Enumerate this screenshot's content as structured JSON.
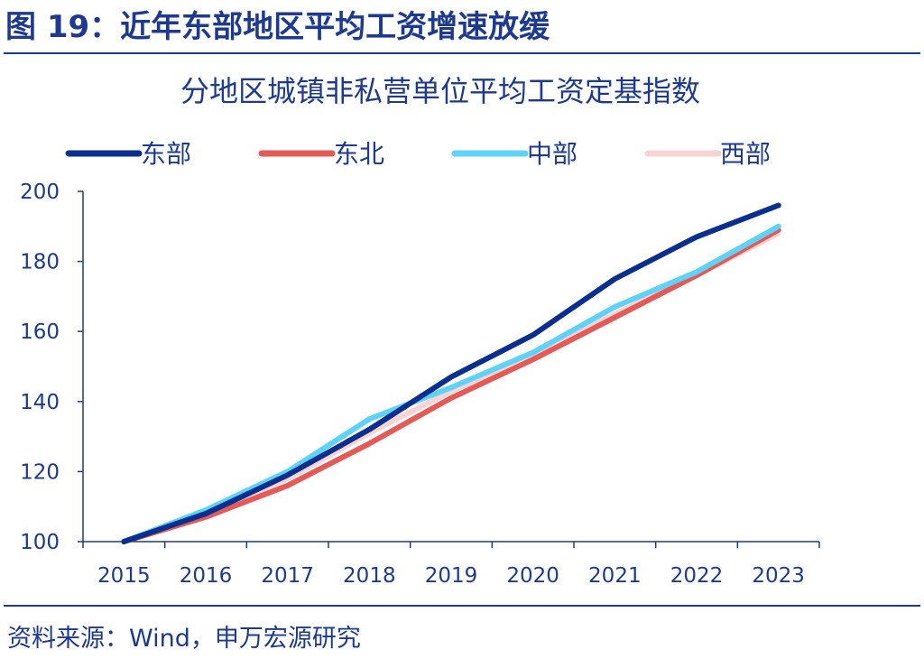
{
  "figure": {
    "title": "图 19：近年东部地区平均工资增速放缓",
    "source": "资料来源：Wind，申万宏源研究"
  },
  "chart_data": {
    "type": "line",
    "title": "分地区城镇非私营单位平均工资定基指数",
    "categories": [
      "2015",
      "2016",
      "2017",
      "2018",
      "2019",
      "2020",
      "2021",
      "2022",
      "2023"
    ],
    "ylim": [
      100,
      200
    ],
    "yticks": [
      100,
      120,
      140,
      160,
      180,
      200
    ],
    "legend_position": "top",
    "grid": false,
    "series": [
      {
        "name": "东部",
        "color": "#0b2f8f",
        "values": [
          100,
          108,
          119,
          132,
          147,
          159,
          175,
          187,
          196
        ]
      },
      {
        "name": "东北",
        "color": "#e45a57",
        "values": [
          100,
          107,
          116,
          128,
          141,
          152,
          164,
          176,
          189
        ]
      },
      {
        "name": "中部",
        "color": "#5fd3f7",
        "values": [
          100,
          109,
          120,
          135,
          144,
          154,
          167,
          177,
          190
        ]
      },
      {
        "name": "西部",
        "color": "#f8d3d3",
        "values": [
          100,
          108,
          118,
          131,
          143,
          153,
          165,
          176,
          188
        ]
      }
    ]
  }
}
